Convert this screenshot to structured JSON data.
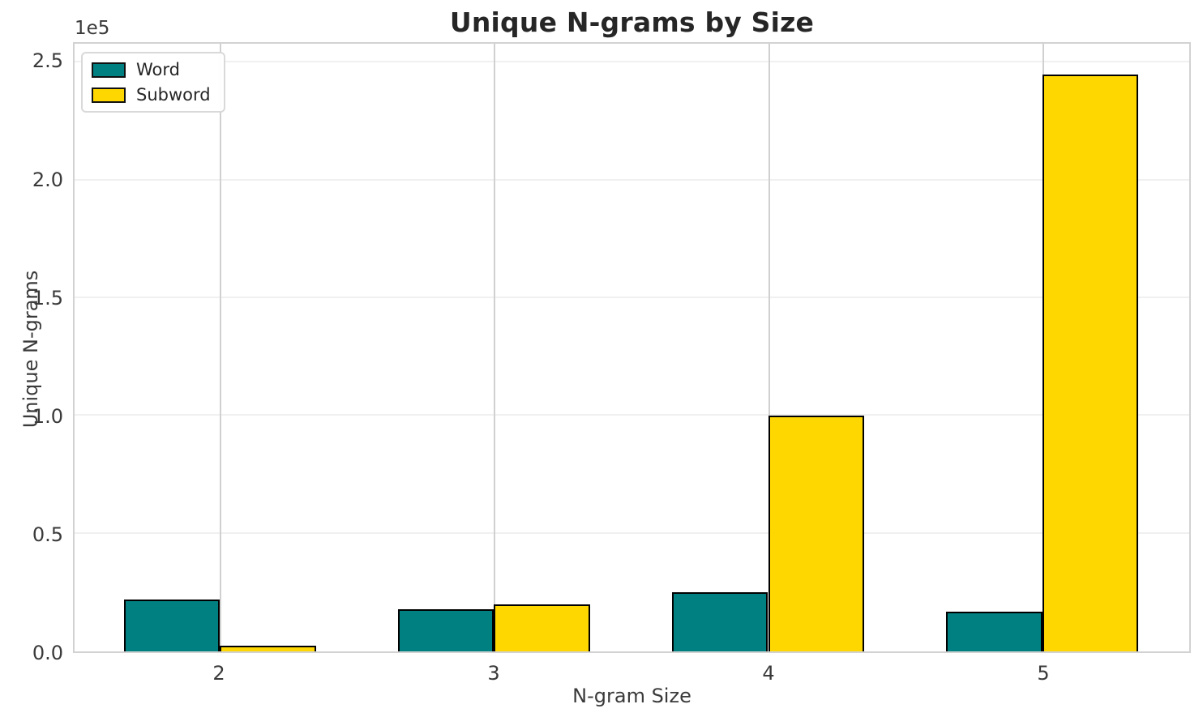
{
  "figure": {
    "background": "#ffffff",
    "offset_text": "1e5"
  },
  "chart_data": {
    "type": "bar",
    "title": "Unique N-grams by Size",
    "xlabel": "N-gram Size",
    "ylabel": "Unique N-grams",
    "categories": [
      "2",
      "3",
      "4",
      "5"
    ],
    "series": [
      {
        "name": "Word",
        "color": "#008080",
        "values": [
          22000,
          18000,
          25000,
          17000
        ]
      },
      {
        "name": "Subword",
        "color": "#ffd700",
        "values": [
          2500,
          20000,
          100000,
          245000
        ]
      }
    ],
    "bar_edge_color": "#000000",
    "ylim": [
      0,
      258000
    ],
    "yticks": [
      {
        "value": 0,
        "label": "0.0"
      },
      {
        "value": 50000,
        "label": "0.5"
      },
      {
        "value": 100000,
        "label": "1.0"
      },
      {
        "value": 150000,
        "label": "1.5"
      },
      {
        "value": 200000,
        "label": "2.0"
      },
      {
        "value": 250000,
        "label": "2.5"
      }
    ],
    "y_scale_note": "1e5",
    "grid": true,
    "legend_position": "upper left"
  }
}
